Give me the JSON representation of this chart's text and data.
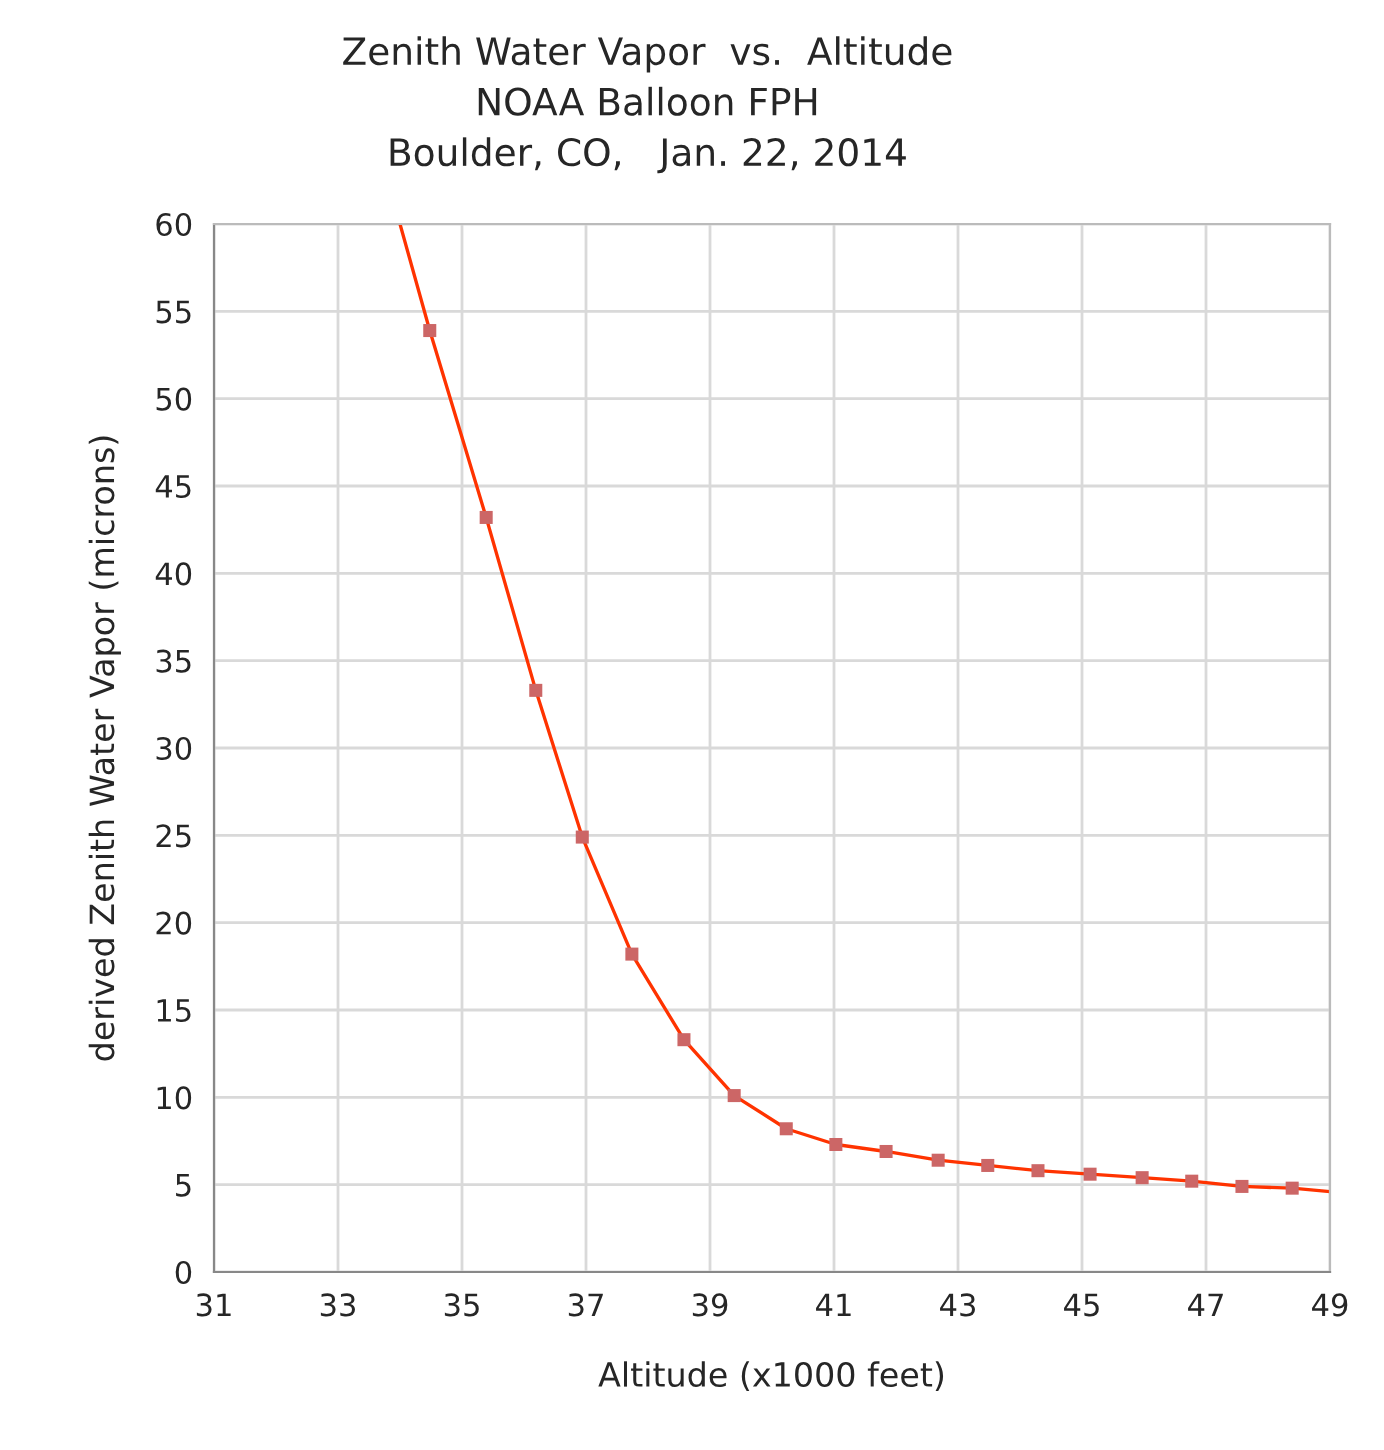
{
  "chart_data": {
    "type": "line",
    "title": "Zenith Water Vapor  vs.  Altitude\nNOAA Balloon FPH\nBoulder, CO,   Jan. 22, 2014",
    "xlabel": "Altitude (x1000 feet)",
    "ylabel": "derived Zenith Water Vapor (microns)",
    "xlim": [
      31,
      49
    ],
    "xticks": [
      31,
      33,
      35,
      37,
      39,
      41,
      43,
      45,
      47,
      49
    ],
    "ylim": [
      0,
      60
    ],
    "yticks": [
      0,
      5,
      10,
      15,
      20,
      25,
      30,
      35,
      40,
      45,
      50,
      55,
      60
    ],
    "grid": true,
    "legend": false,
    "series": [
      {
        "color": "#ff3300",
        "marker": "none",
        "line_style": "solid",
        "x": [
          34.0,
          34.48,
          35.39,
          36.19,
          36.94,
          37.74,
          38.58,
          39.39,
          40.23,
          41.03,
          41.84,
          42.68,
          43.48,
          44.29,
          45.13,
          45.97,
          46.77,
          47.58,
          48.39,
          49.0
        ],
        "values": [
          60,
          53.9,
          43.2,
          33.3,
          24.9,
          18.2,
          13.3,
          10.1,
          8.2,
          7.3,
          6.9,
          6.4,
          6.1,
          5.8,
          5.6,
          5.4,
          5.2,
          4.9,
          4.8,
          4.6
        ]
      },
      {
        "type": "scatter",
        "color": "#cc6666",
        "marker": "square",
        "x": [
          34.48,
          35.39,
          36.19,
          36.94,
          37.74,
          38.58,
          39.39,
          40.23,
          41.03,
          41.84,
          42.68,
          43.48,
          44.29,
          45.13,
          45.97,
          46.77,
          47.58,
          48.39
        ],
        "values": [
          53.9,
          43.2,
          33.3,
          24.9,
          18.2,
          13.3,
          10.1,
          8.2,
          7.3,
          6.9,
          6.4,
          6.1,
          5.8,
          5.6,
          5.4,
          5.2,
          4.9,
          4.8
        ]
      }
    ]
  }
}
